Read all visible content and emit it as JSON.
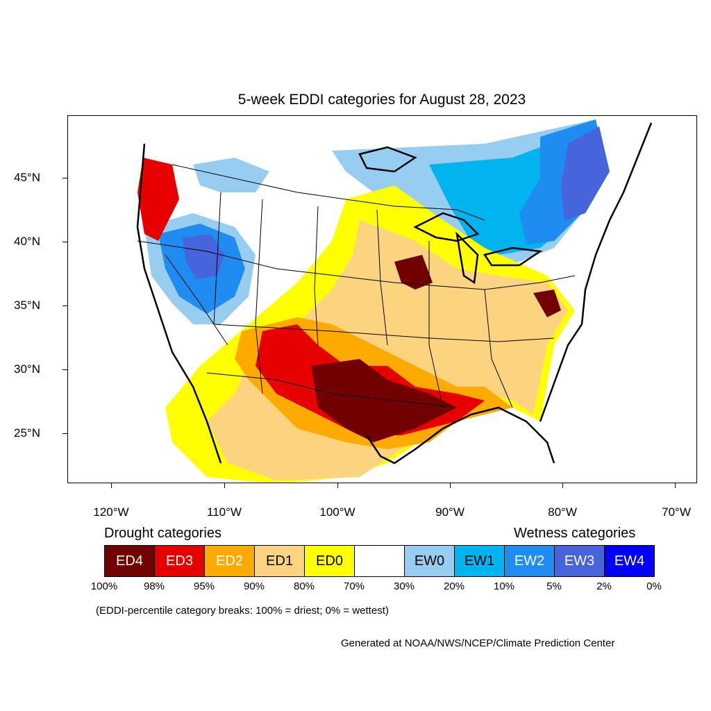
{
  "map": {
    "title": "5-week EDDI categories for August 28, 2023",
    "lat_labels": [
      "45°N",
      "40°N",
      "35°N",
      "30°N",
      "25°N"
    ],
    "lon_labels": [
      "120°W",
      "110°W",
      "100°W",
      "90°W",
      "80°W",
      "70°W"
    ]
  },
  "legend": {
    "drought_heading": "Drought categories",
    "wetness_heading": "Wetness categories",
    "categories": [
      {
        "label": "ED4",
        "color": "#730000",
        "text_color": "#ffffff"
      },
      {
        "label": "ED3",
        "color": "#e60000",
        "text_color": "#ffffff"
      },
      {
        "label": "ED2",
        "color": "#ffaa00",
        "text_color": "#ffffff"
      },
      {
        "label": "ED1",
        "color": "#fcd37f",
        "text_color": "#000000"
      },
      {
        "label": "ED0",
        "color": "#ffff00",
        "text_color": "#000000"
      },
      {
        "label": "",
        "color": "#ffffff",
        "text_color": "#000000"
      },
      {
        "label": "EW0",
        "color": "#96cdf0",
        "text_color": "#000000"
      },
      {
        "label": "EW1",
        "color": "#00b4f0",
        "text_color": "#000000"
      },
      {
        "label": "EW2",
        "color": "#1e8cf0",
        "text_color": "#ffffff"
      },
      {
        "label": "EW3",
        "color": "#4664dc",
        "text_color": "#ffffff"
      },
      {
        "label": "EW4",
        "color": "#0000ff",
        "text_color": "#ffffff"
      }
    ],
    "breaks": [
      "100%",
      "98%",
      "95%",
      "90%",
      "80%",
      "70%",
      "30%",
      "20%",
      "10%",
      "5%",
      "2%",
      "0%"
    ],
    "note": "(EDDI-percentile category breaks: 100% = driest; 0% = wettest)",
    "credit": "Generated at NOAA/NWS/NCEP/Climate Prediction Center"
  }
}
